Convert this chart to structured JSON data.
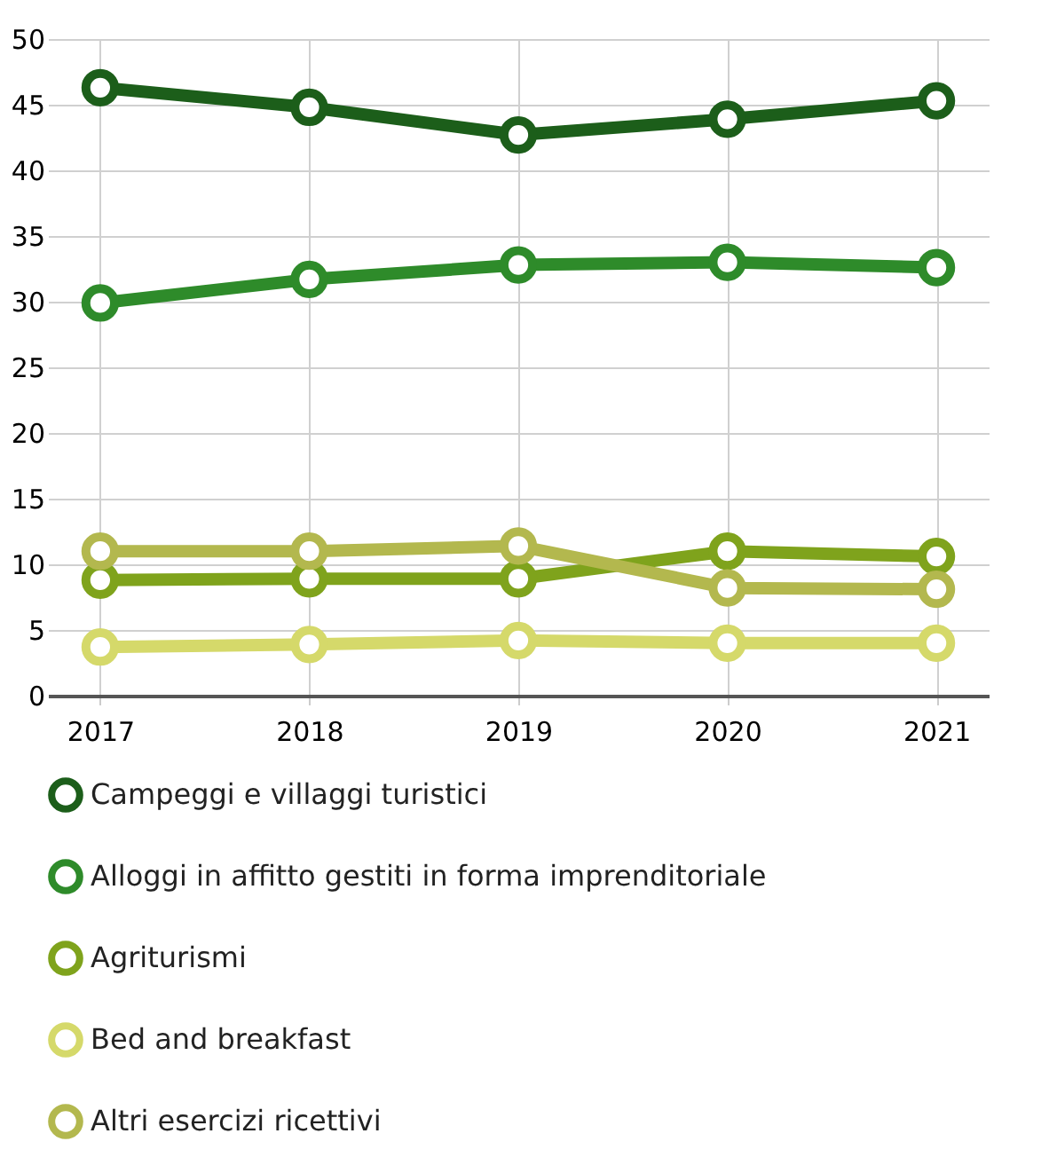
{
  "chart_data": {
    "type": "line",
    "categories": [
      "2017",
      "2018",
      "2019",
      "2020",
      "2021"
    ],
    "series": [
      {
        "name": "Campeggi e villaggi turistici",
        "color": "#1c5e1a",
        "values": [
          46.3,
          44.8,
          42.7,
          43.9,
          45.3
        ]
      },
      {
        "name": "Alloggi in affitto gestiti in forma imprenditoriale",
        "color": "#2e8b2a",
        "values": [
          29.9,
          31.7,
          32.8,
          33.0,
          32.6
        ]
      },
      {
        "name": "Agriturismi",
        "color": "#7fa31c",
        "values": [
          8.8,
          8.9,
          8.9,
          11.0,
          10.6
        ]
      },
      {
        "name": "Bed and breakfast",
        "color": "#d5d96a",
        "values": [
          3.7,
          3.9,
          4.2,
          4.0,
          4.0
        ]
      },
      {
        "name": "Altri esercizi ricettivi",
        "color": "#b3b84e",
        "values": [
          11.0,
          11.0,
          11.4,
          8.2,
          8.1
        ]
      }
    ],
    "ylim": [
      0,
      50
    ],
    "yticks": [
      0,
      5,
      10,
      15,
      20,
      25,
      30,
      35,
      40,
      45,
      50
    ],
    "grid": true,
    "legend": "bottom",
    "marker": "circle",
    "line_style": "solid"
  }
}
